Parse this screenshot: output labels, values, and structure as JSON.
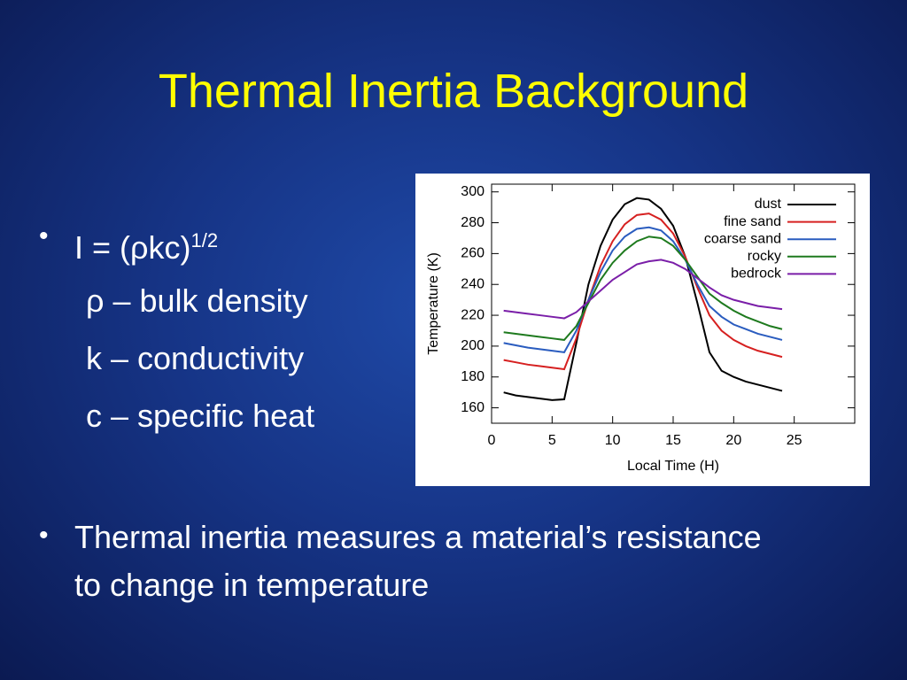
{
  "slide": {
    "title": "Thermal Inertia Background",
    "bullets": [
      {
        "text": "I = (ρkc)",
        "superscript": "1/2",
        "sub_items": [
          "ρ – bulk density",
          "k – conductivity",
          "c – specific heat"
        ]
      },
      {
        "text": "Thermal inertia measures a material’s resistance to change in temperature"
      }
    ]
  },
  "chart_data": {
    "type": "line",
    "x_label": "Local Time (H)",
    "y_label": "Temperature (K)",
    "x": [
      1,
      2,
      3,
      4,
      5,
      6,
      7,
      8,
      9,
      10,
      11,
      12,
      13,
      14,
      15,
      16,
      17,
      18,
      19,
      20,
      21,
      22,
      23,
      24
    ],
    "series": [
      {
        "name": "dust",
        "color": "#000000",
        "values": [
          170,
          168,
          167,
          166,
          165,
          165.5,
          202,
          240,
          265,
          282,
          292,
          296,
          295,
          289,
          278,
          258,
          228,
          196,
          184,
          180,
          177,
          175,
          173,
          171
        ]
      },
      {
        "name": "fine sand",
        "color": "#d62020",
        "values": [
          191,
          189.5,
          188,
          187,
          186,
          185,
          205,
          230,
          252,
          268,
          279,
          285,
          286,
          282,
          273,
          258,
          238,
          220,
          210,
          204,
          200,
          197,
          195,
          193
        ]
      },
      {
        "name": "coarse sand",
        "color": "#2a5cbf",
        "values": [
          202,
          200.5,
          199,
          198,
          197,
          196,
          210,
          230,
          248,
          262,
          271,
          276,
          277,
          275,
          268,
          256,
          240,
          226,
          219,
          214,
          211,
          208,
          206,
          204
        ]
      },
      {
        "name": "rocky",
        "color": "#1e7a1e",
        "values": [
          209,
          208,
          207,
          206,
          205,
          204,
          213,
          228,
          243,
          254,
          262,
          268,
          271,
          270,
          265,
          256,
          245,
          234,
          228,
          223,
          219,
          216,
          213,
          211
        ]
      },
      {
        "name": "bedrock",
        "color": "#7a1ea8",
        "values": [
          223,
          222,
          221,
          220,
          219,
          218,
          222,
          229,
          236,
          243,
          248,
          253,
          255,
          256,
          254,
          250,
          244,
          238,
          233,
          230,
          228,
          226,
          225,
          224
        ]
      }
    ],
    "xlim": [
      0,
      30
    ],
    "xticks": [
      0,
      5,
      10,
      15,
      20,
      25
    ],
    "ylim": [
      150,
      305
    ],
    "yticks": [
      160,
      180,
      200,
      220,
      240,
      260,
      280,
      300
    ],
    "legend": "upper right",
    "grid": false
  }
}
